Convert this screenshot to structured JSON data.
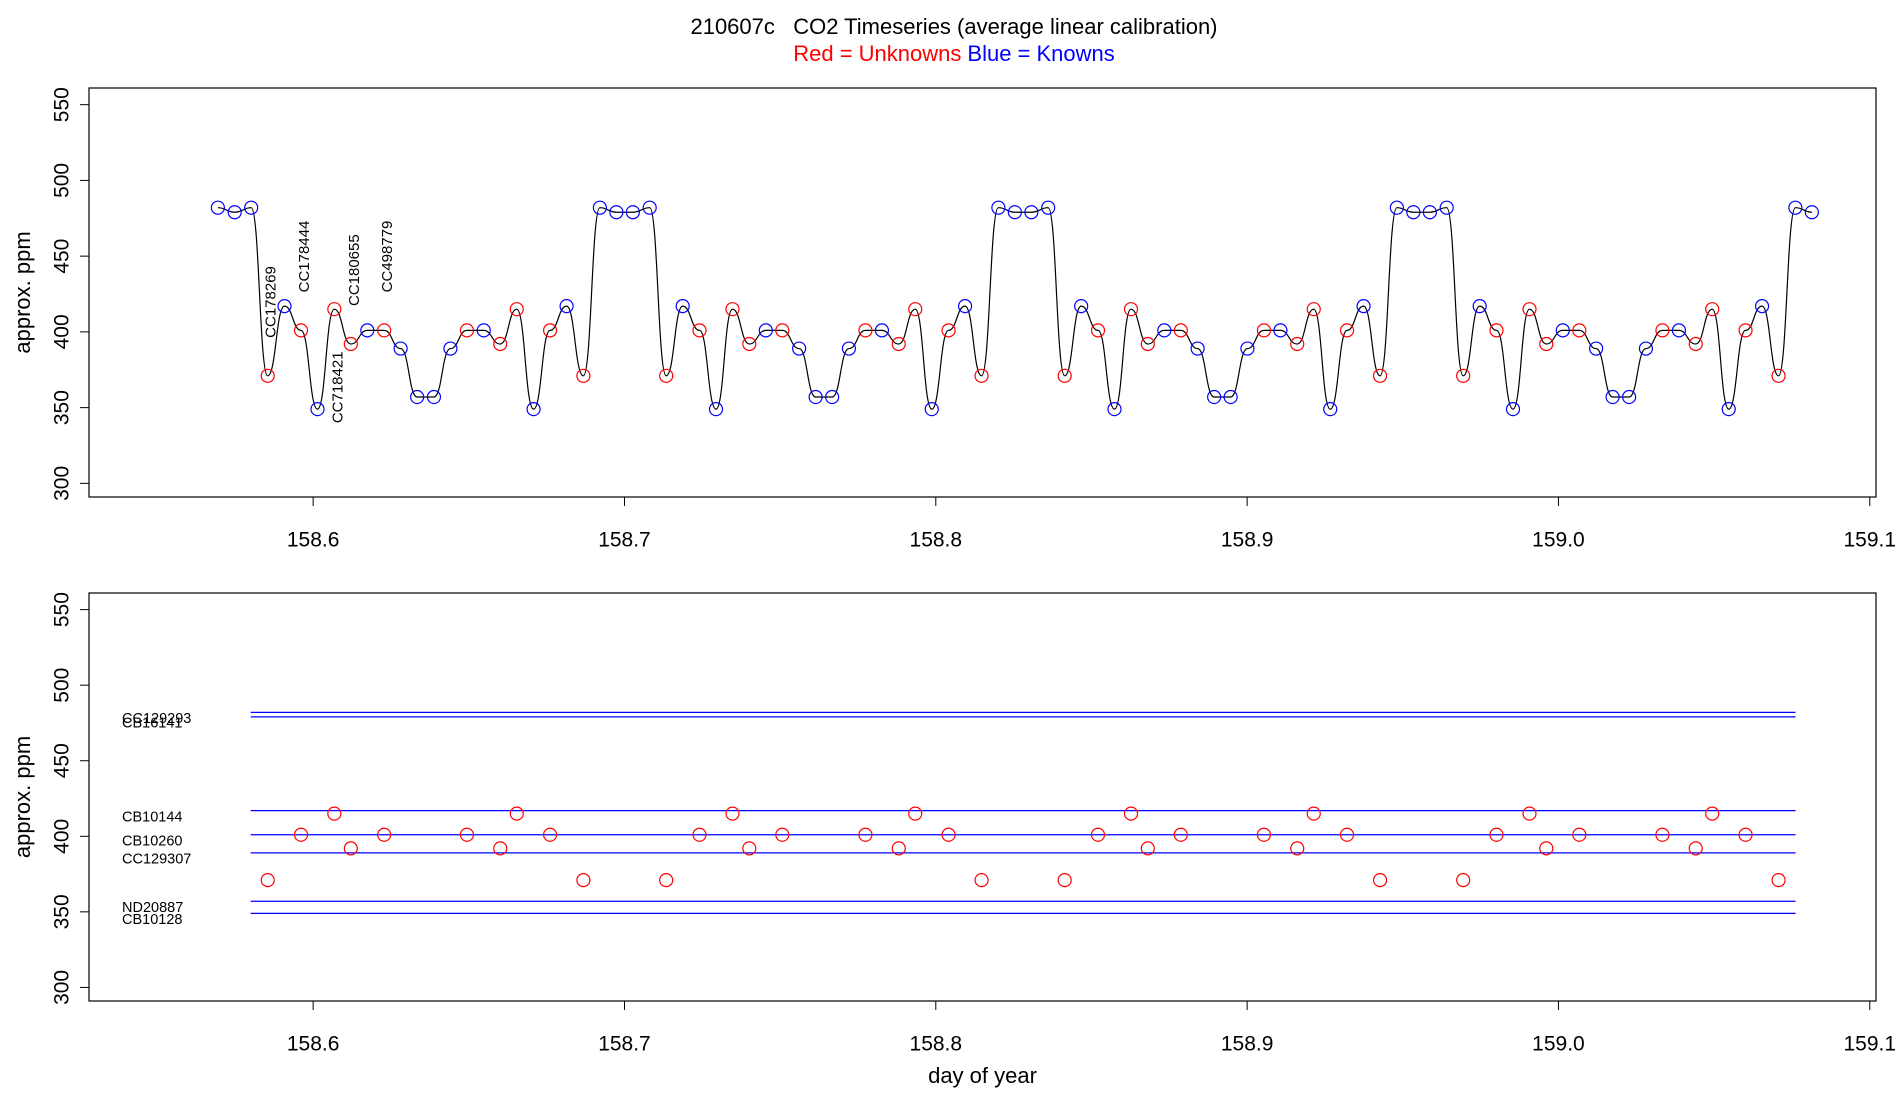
{
  "chart_data": [
    {
      "type": "line",
      "title": "210607c   CO2 Timeseries (average linear calibration)",
      "ylabel": "approx. ppm",
      "xlim": [
        158.528,
        159.102
      ],
      "ylim": [
        291,
        561
      ],
      "xticks": [
        158.6,
        158.7,
        158.8,
        158.9,
        {
          "value": 159,
          "label": "159.0"
        },
        159.1
      ],
      "yticks": [
        300,
        350,
        400,
        450,
        500,
        550
      ],
      "trace_color": "#000000",
      "series": [
        {
          "name": "Red = Unknowns",
          "color": "#ff0000",
          "x": [
            158.5854,
            158.5961,
            158.6068,
            158.6121,
            158.6228,
            158.6494,
            158.6601,
            158.6654,
            158.6761,
            158.6868,
            158.7134,
            158.7241,
            158.7347,
            158.7401,
            158.7507,
            158.7774,
            158.7881,
            158.7934,
            158.8041,
            158.8147,
            158.8414,
            158.8521,
            158.8627,
            158.8681,
            158.8787,
            158.9054,
            158.9161,
            158.9214,
            158.9321,
            158.9427,
            158.9694,
            158.9801,
            158.9907,
            158.9961,
            159.0067,
            159.0334,
            159.0441,
            159.0494,
            159.0601,
            159.0707
          ],
          "values": [
            371,
            401,
            415,
            392,
            401,
            401,
            392,
            415,
            401,
            371,
            371,
            401,
            415,
            392,
            401,
            401,
            392,
            415,
            401,
            371,
            371,
            401,
            415,
            392,
            401,
            401,
            392,
            415,
            401,
            371,
            371,
            401,
            415,
            392,
            401,
            401,
            392,
            415,
            401,
            371
          ]
        },
        {
          "name": "Blue = Knowns",
          "color": "#0000ff",
          "x": [
            158.5694,
            158.5748,
            158.5801,
            158.5908,
            158.6014,
            158.6174,
            158.6281,
            158.6334,
            158.6388,
            158.6441,
            158.6548,
            158.6708,
            158.6814,
            158.6921,
            158.6974,
            158.7027,
            158.7081,
            158.7187,
            158.7294,
            158.7454,
            158.7561,
            158.7614,
            158.7667,
            158.7721,
            158.7827,
            158.7987,
            158.8094,
            158.8201,
            158.8254,
            158.8307,
            158.8361,
            158.8467,
            158.8574,
            158.8734,
            158.8841,
            158.8894,
            158.8947,
            158.9001,
            158.9107,
            158.9267,
            158.9374,
            158.9481,
            158.9534,
            158.9587,
            158.9641,
            158.9747,
            158.9854,
            159.0014,
            159.0121,
            159.0174,
            159.0227,
            159.0281,
            159.0387,
            159.0547,
            159.0654,
            159.0761,
            159.0814
          ],
          "values": [
            482,
            479,
            482,
            417,
            349,
            401,
            389,
            357,
            357,
            389,
            401,
            349,
            417,
            482,
            479,
            479,
            482,
            417,
            349,
            401,
            389,
            357,
            357,
            389,
            401,
            349,
            417,
            482,
            479,
            479,
            482,
            417,
            349,
            401,
            389,
            357,
            357,
            389,
            401,
            349,
            417,
            482,
            479,
            479,
            482,
            417,
            349,
            401,
            389,
            357,
            357,
            389,
            401,
            349,
            417,
            482,
            479
          ]
        }
      ],
      "annotations": [
        "CC178269",
        "CC178444",
        "CC718421",
        "CC180655",
        "CC498779"
      ]
    },
    {
      "type": "scatter",
      "xlabel": "day of year",
      "ylabel": "approx. ppm",
      "xlim": [
        158.528,
        159.102
      ],
      "ylim": [
        291,
        561
      ],
      "xticks": [
        158.6,
        158.7,
        158.8,
        158.9,
        {
          "value": 159,
          "label": "159.0"
        },
        159.1
      ],
      "yticks": [
        300,
        350,
        400,
        450,
        500,
        550
      ],
      "series": [
        {
          "color": "#ff0000",
          "x": [
            158.5854,
            158.5961,
            158.6068,
            158.6121,
            158.6228,
            158.6494,
            158.6601,
            158.6654,
            158.6761,
            158.6868,
            158.7134,
            158.7241,
            158.7347,
            158.7401,
            158.7507,
            158.7774,
            158.7881,
            158.7934,
            158.8041,
            158.8147,
            158.8414,
            158.8521,
            158.8627,
            158.8681,
            158.8787,
            158.9054,
            158.9161,
            158.9214,
            158.9321,
            158.9427,
            158.9694,
            158.9801,
            158.9907,
            158.9961,
            159.0067,
            159.0334,
            159.0441,
            159.0494,
            159.0601,
            159.0707
          ],
          "values": [
            371,
            401,
            415,
            392,
            401,
            401,
            392,
            415,
            401,
            371,
            371,
            401,
            415,
            392,
            401,
            401,
            392,
            415,
            401,
            371,
            371,
            401,
            415,
            392,
            401,
            401,
            392,
            415,
            401,
            371,
            371,
            401,
            415,
            392,
            401,
            401,
            392,
            415,
            401,
            371
          ]
        }
      ],
      "reference_lines": {
        "color": "#0000ff",
        "names": [
          "CC129293",
          "CB16141",
          "CB10144",
          "CB10260",
          "CC129307",
          "ND20887",
          "CB10128"
        ],
        "values": [
          482,
          479,
          417,
          401,
          389,
          357,
          349
        ]
      }
    }
  ]
}
